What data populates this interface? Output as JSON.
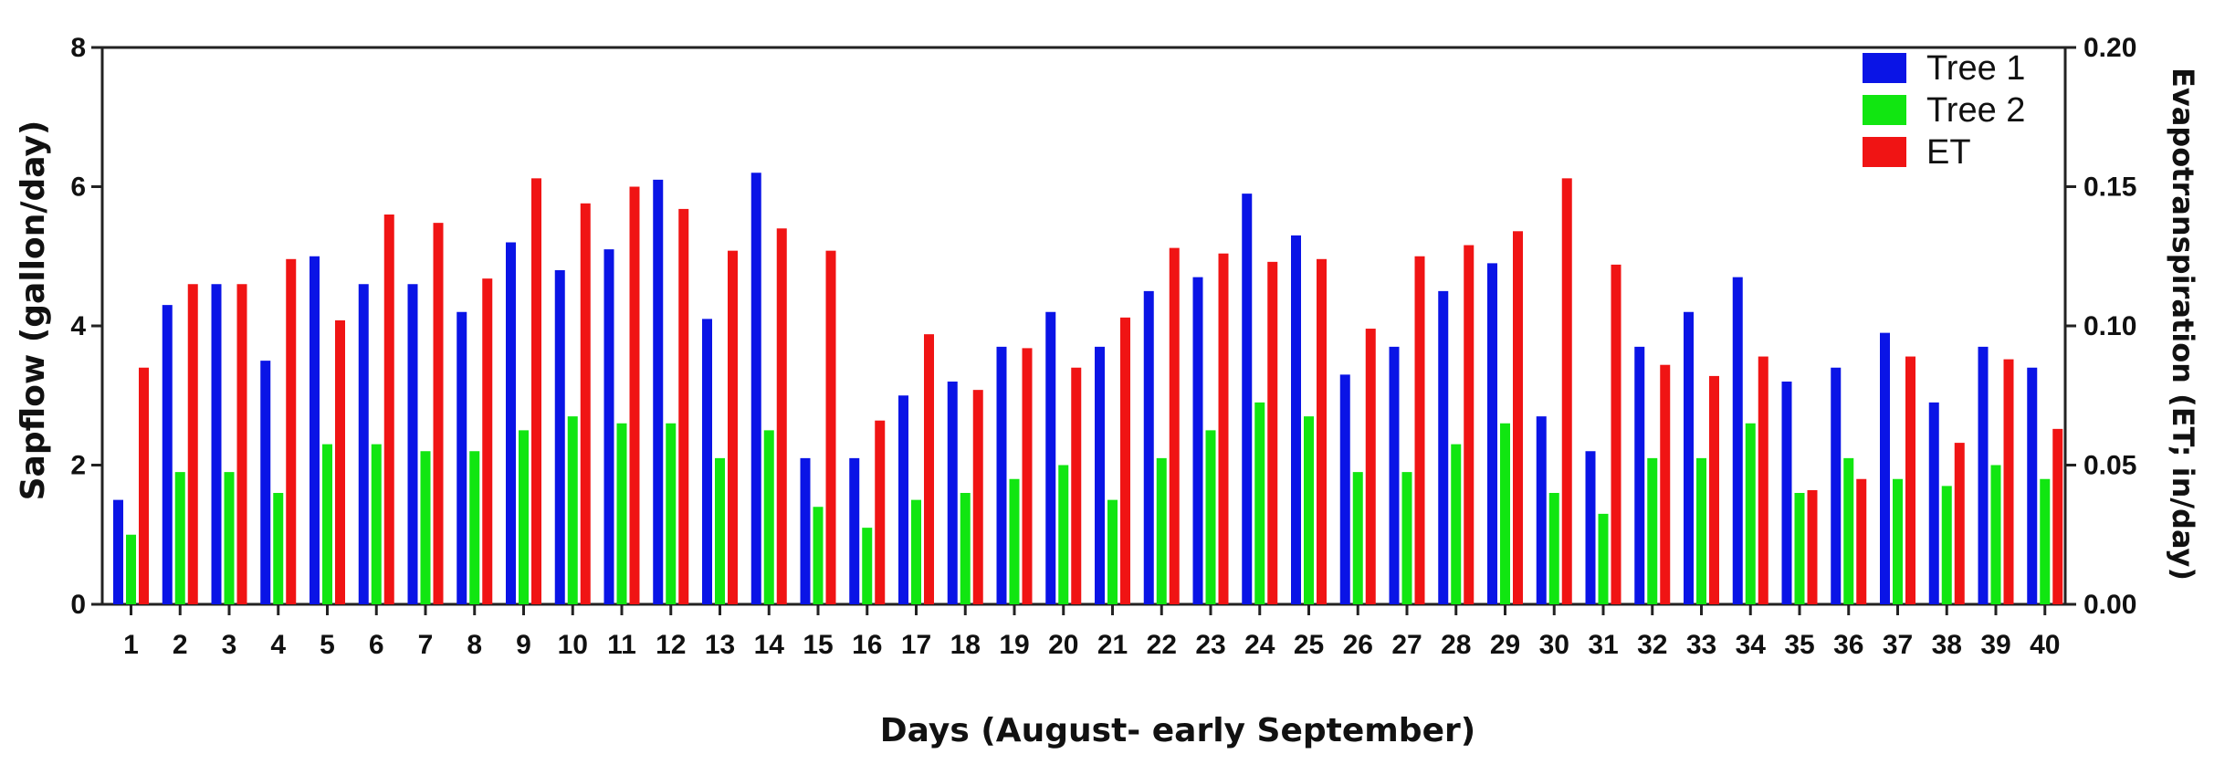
{
  "chart_data": {
    "type": "bar",
    "xlabel": "Days (August- early September)",
    "ylabel": "Sapflow (gallon/day)",
    "y2label": "Evapotranspiration (ET; in/day)",
    "ylim": [
      0,
      8
    ],
    "y2lim": [
      0,
      0.2
    ],
    "yticks": [
      "0",
      "2",
      "4",
      "6",
      "8"
    ],
    "y2ticks": [
      "0.00",
      "0.05",
      "0.10",
      "0.15",
      "0.20"
    ],
    "grid": false,
    "legend_position": "top-right",
    "categories": [
      "1",
      "2",
      "3",
      "4",
      "5",
      "6",
      "7",
      "8",
      "9",
      "10",
      "11",
      "12",
      "13",
      "14",
      "15",
      "16",
      "17",
      "18",
      "19",
      "20",
      "21",
      "22",
      "23",
      "24",
      "25",
      "26",
      "27",
      "28",
      "29",
      "30",
      "31",
      "32",
      "33",
      "34",
      "35",
      "36",
      "37",
      "38",
      "39",
      "40"
    ],
    "series": [
      {
        "name": "Tree 1",
        "color": "#0a14e6",
        "axis": "left",
        "values": [
          1.5,
          4.3,
          4.6,
          3.5,
          5.0,
          4.6,
          4.6,
          4.2,
          5.2,
          4.8,
          5.1,
          6.1,
          4.1,
          6.2,
          2.1,
          2.1,
          3.0,
          3.2,
          3.7,
          4.2,
          3.7,
          4.5,
          4.7,
          5.9,
          5.3,
          3.3,
          3.7,
          4.5,
          4.9,
          2.7,
          2.2,
          3.7,
          4.2,
          4.7,
          3.2,
          3.4,
          3.9,
          2.9,
          3.7,
          3.4
        ]
      },
      {
        "name": "Tree 2",
        "color": "#11e611",
        "axis": "left",
        "values": [
          1.0,
          1.9,
          1.9,
          1.6,
          2.3,
          2.3,
          2.2,
          2.2,
          2.5,
          2.7,
          2.6,
          2.6,
          2.1,
          2.5,
          1.4,
          1.1,
          1.5,
          1.6,
          1.8,
          2.0,
          1.5,
          2.1,
          2.5,
          2.9,
          2.7,
          1.9,
          1.9,
          2.3,
          2.6,
          1.6,
          1.3,
          2.1,
          2.1,
          2.6,
          1.6,
          2.1,
          1.8,
          1.7,
          2.0,
          1.8
        ]
      },
      {
        "name": "ET",
        "color": "#f01414",
        "axis": "right",
        "values": [
          0.085,
          0.115,
          0.115,
          0.124,
          0.102,
          0.14,
          0.137,
          0.117,
          0.153,
          0.144,
          0.15,
          0.142,
          0.127,
          0.135,
          0.127,
          0.066,
          0.097,
          0.077,
          0.092,
          0.085,
          0.103,
          0.128,
          0.126,
          0.123,
          0.124,
          0.099,
          0.125,
          0.129,
          0.134,
          0.153,
          0.122,
          0.086,
          0.082,
          0.089,
          0.041,
          0.045,
          0.089,
          0.058,
          0.088,
          0.063
        ]
      }
    ]
  }
}
